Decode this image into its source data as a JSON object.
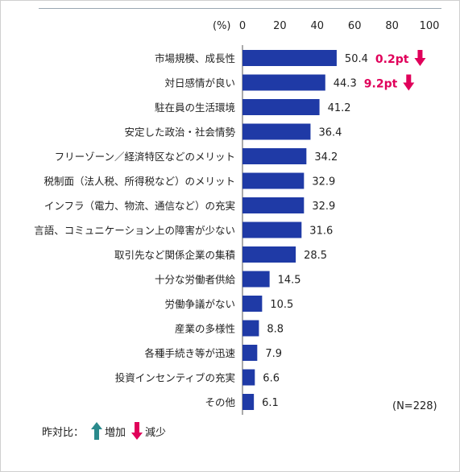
{
  "chart_data": {
    "type": "bar",
    "orientation": "horizontal",
    "unit_label": "(%)",
    "xlim": [
      0,
      100
    ],
    "x_ticks": [
      "0",
      "20",
      "40",
      "60",
      "80",
      "100"
    ],
    "categories": [
      "市場規模、成長性",
      "対日感情が良い",
      "駐在員の生活環境",
      "安定した政治・社会情勢",
      "フリーゾーン／経済特区などのメリット",
      "税制面（法人税、所得税など）のメリット",
      "インフラ（電力、物流、通信など）の充実",
      "言語、コミュニケーション上の障害が少ない",
      "取引先など関係企業の集積",
      "十分な労働者供給",
      "労働争議がない",
      "産業の多様性",
      "各種手続き等が迅速",
      "投資インセンティブの充実",
      "その他"
    ],
    "values": [
      50.4,
      44.3,
      41.2,
      36.4,
      34.2,
      32.9,
      32.9,
      31.6,
      28.5,
      14.5,
      10.5,
      8.8,
      7.9,
      6.6,
      6.1
    ],
    "value_labels": [
      "50.4",
      "44.3",
      "41.2",
      "36.4",
      "34.2",
      "32.9",
      "32.9",
      "31.6",
      "28.5",
      "14.5",
      "10.5",
      "8.8",
      "7.9",
      "6.6",
      "6.1"
    ],
    "changes": [
      {
        "index": 0,
        "label": "0.2pt",
        "direction": "down"
      },
      {
        "index": 1,
        "label": "9.2pt",
        "direction": "down"
      }
    ],
    "sample_note": "(N=228)",
    "grid": false
  },
  "legend": {
    "title": "昨対比：",
    "increase_label": "増加",
    "decrease_label": "減少"
  },
  "colors": {
    "bar": "#1f3aa6",
    "decrease": "#e0005a",
    "increase": "#2a8a8c",
    "axis": "#555555"
  }
}
